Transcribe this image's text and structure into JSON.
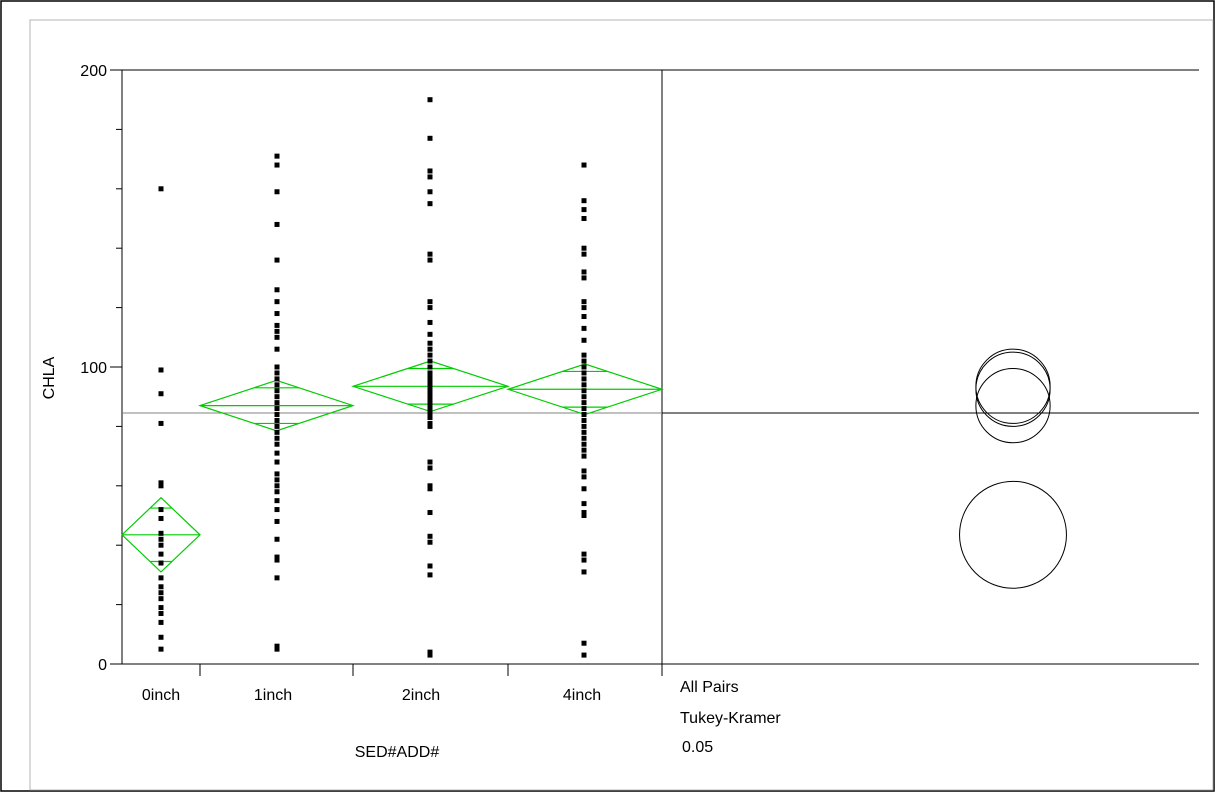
{
  "chart_data": {
    "type": "scatter",
    "ylabel": "CHLA",
    "xlabel": "SED#ADD#",
    "ylim": [
      0,
      200
    ],
    "yticks": [
      0,
      100,
      200
    ],
    "grand_mean": 84.5,
    "categories": [
      "0inch",
      "1inch",
      "2inch",
      "4inch"
    ],
    "groups": [
      {
        "name": "0inch",
        "mean": 43.5,
        "ci_low": 31,
        "ci_high": 56,
        "overlap_low": 34.5,
        "overlap_high": 52.5,
        "values": [
          160,
          99,
          91,
          81,
          61,
          60,
          52,
          49,
          44,
          42,
          40,
          37,
          34,
          29,
          26,
          24,
          22,
          19,
          17,
          14,
          9,
          5
        ]
      },
      {
        "name": "1inch",
        "mean": 87,
        "ci_low": 78.5,
        "ci_high": 95.5,
        "overlap_low": 81,
        "overlap_high": 93,
        "values": [
          171,
          168,
          159,
          148,
          136,
          126,
          122,
          118,
          114,
          112,
          110,
          106,
          100,
          98,
          96,
          94,
          92,
          90,
          88,
          86,
          84,
          82,
          80,
          78,
          76,
          74,
          71,
          68,
          64,
          62,
          60,
          58,
          55,
          52,
          48,
          42,
          36,
          35,
          29,
          6,
          5
        ]
      },
      {
        "name": "2inch",
        "mean": 93.5,
        "ci_low": 85,
        "ci_high": 102,
        "overlap_low": 87.5,
        "overlap_high": 99.5,
        "values": [
          190,
          177,
          166,
          164,
          159,
          155,
          138,
          136,
          122,
          120,
          115,
          111,
          108,
          106,
          104,
          102,
          100,
          98,
          97,
          96,
          95,
          94,
          93,
          92,
          91,
          90,
          89,
          88,
          87,
          86,
          85,
          84,
          83,
          81,
          80,
          68,
          66,
          60,
          59,
          51,
          43,
          41,
          33,
          30,
          4,
          3
        ]
      },
      {
        "name": "4inch",
        "mean": 92.5,
        "ci_low": 84,
        "ci_high": 101,
        "overlap_low": 86.5,
        "overlap_high": 98.5,
        "values": [
          168,
          156,
          153,
          150,
          140,
          138,
          132,
          130,
          122,
          120,
          117,
          113,
          109,
          104,
          102,
          100,
          98,
          96,
          94,
          92,
          90,
          88,
          86,
          84,
          82,
          80,
          78,
          76,
          74,
          72,
          70,
          65,
          63,
          59,
          54,
          51,
          50,
          37,
          35,
          31,
          7,
          3
        ]
      }
    ],
    "comparison_circles": [
      {
        "group": "0inch",
        "center": 43.5,
        "radius": 18
      },
      {
        "group": "1inch",
        "center": 87,
        "radius": 12.5
      },
      {
        "group": "2inch",
        "center": 93.5,
        "radius": 12.5
      },
      {
        "group": "4inch",
        "center": 92.5,
        "radius": 12.5
      }
    ],
    "comparison_label": [
      "All Pairs",
      "Tukey-Kramer",
      "0.05"
    ],
    "colors": {
      "diamond": "#00cc00",
      "points": "#000000",
      "mean_line": "#808080"
    }
  }
}
